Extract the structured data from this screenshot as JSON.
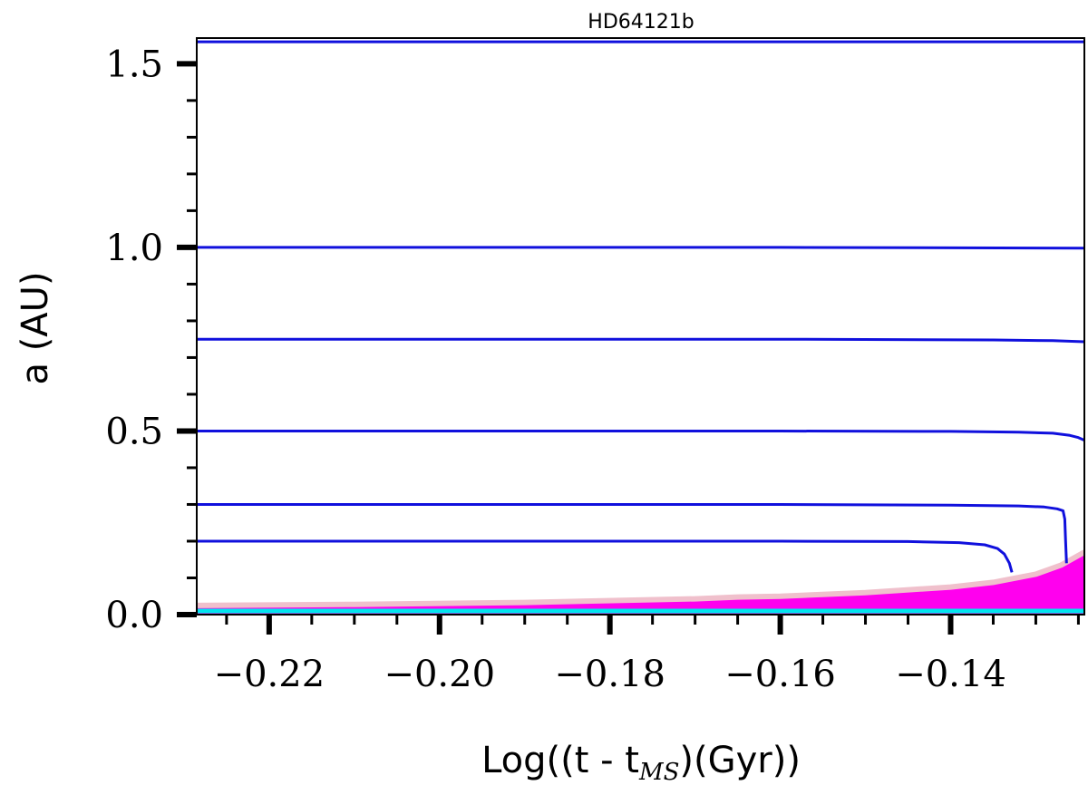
{
  "chart_data": {
    "type": "line",
    "title": "HD64121b",
    "xlabel": "Log((t - t",
    "xlabel_sub": "MS",
    "xlabel_end": ")(Gyr))",
    "ylabel": "a (AU)",
    "xlim": [
      -0.2285,
      -0.1243
    ],
    "ylim": [
      0.0,
      1.57
    ],
    "x_major_ticks": [
      -0.22,
      -0.2,
      -0.18,
      -0.16,
      -0.14
    ],
    "x_tick_labels": [
      "−0.22",
      "−0.20",
      "−0.18",
      "−0.16",
      "−0.14"
    ],
    "x_minor_step": 0.005,
    "y_major_ticks": [
      0.0,
      0.5,
      1.0,
      1.5
    ],
    "y_tick_labels": [
      "0.0",
      "0.5",
      "1.0",
      "1.5"
    ],
    "y_minor_step": 0.1,
    "grid": false,
    "colors": {
      "orbit": "#1010dd",
      "stellar_radius": "#ff00ee",
      "stellar_edge": "#f0c0cc",
      "surface": "#00e5ee"
    },
    "series": [
      {
        "points": [
          [
            -0.2285,
            1.56
          ],
          [
            -0.1243,
            1.56
          ]
        ]
      },
      {
        "points": [
          [
            -0.2285,
            1.0
          ],
          [
            -0.16,
            1.0
          ],
          [
            -0.1243,
            0.998
          ]
        ]
      },
      {
        "points": [
          [
            -0.2285,
            0.75
          ],
          [
            -0.16,
            0.75
          ],
          [
            -0.135,
            0.748
          ],
          [
            -0.128,
            0.746
          ],
          [
            -0.1243,
            0.743
          ]
        ]
      },
      {
        "points": [
          [
            -0.2285,
            0.5
          ],
          [
            -0.16,
            0.5
          ],
          [
            -0.14,
            0.499
          ],
          [
            -0.132,
            0.497
          ],
          [
            -0.128,
            0.494
          ],
          [
            -0.126,
            0.488
          ],
          [
            -0.125,
            0.482
          ],
          [
            -0.1243,
            0.475
          ]
        ]
      },
      {
        "points": [
          [
            -0.2285,
            0.3
          ],
          [
            -0.16,
            0.3
          ],
          [
            -0.14,
            0.298
          ],
          [
            -0.132,
            0.296
          ],
          [
            -0.129,
            0.293
          ],
          [
            -0.1275,
            0.288
          ],
          [
            -0.1268,
            0.283
          ],
          [
            -0.1266,
            0.26
          ],
          [
            -0.1265,
            0.2
          ],
          [
            -0.1264,
            0.14
          ]
        ]
      },
      {
        "points": [
          [
            -0.2285,
            0.2
          ],
          [
            -0.16,
            0.2
          ],
          [
            -0.145,
            0.199
          ],
          [
            -0.139,
            0.196
          ],
          [
            -0.136,
            0.19
          ],
          [
            -0.1345,
            0.18
          ],
          [
            -0.1337,
            0.165
          ],
          [
            -0.1331,
            0.14
          ],
          [
            -0.1328,
            0.115
          ]
        ]
      }
    ],
    "stellar_radius": [
      [
        -0.2285,
        0.025
      ],
      [
        -0.21,
        0.028
      ],
      [
        -0.19,
        0.033
      ],
      [
        -0.17,
        0.043
      ],
      [
        -0.165,
        0.048
      ],
      [
        -0.16,
        0.05
      ],
      [
        -0.15,
        0.06
      ],
      [
        -0.14,
        0.075
      ],
      [
        -0.135,
        0.088
      ],
      [
        -0.13,
        0.11
      ],
      [
        -0.127,
        0.135
      ],
      [
        -0.1243,
        0.17
      ]
    ],
    "surface_line": 0.01
  }
}
